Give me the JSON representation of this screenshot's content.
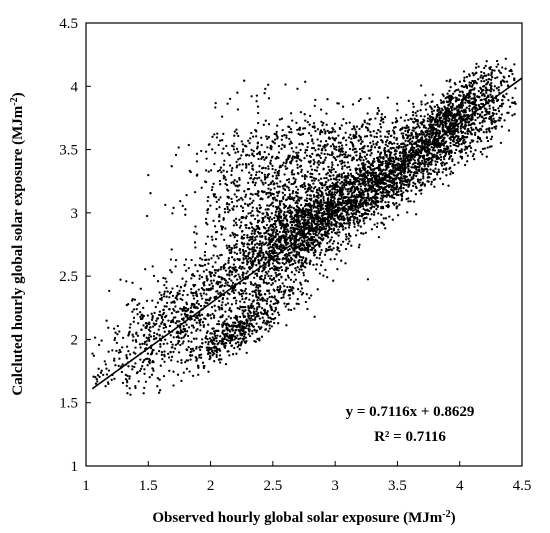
{
  "chart_data": {
    "type": "scatter",
    "title": "",
    "xlabel": "Observed hourly  global solar exposure (MJm",
    "xlabel_sup": "-2",
    "xlabel_end": ")",
    "ylabel": "Calcluted hourly  global solar exposure (MJm",
    "ylabel_sup": "-2",
    "ylabel_end": ")",
    "xlim": [
      1,
      4.5
    ],
    "ylim": [
      1,
      4.5
    ],
    "x_ticks": [
      "1",
      "1.5",
      "2",
      "2.5",
      "3",
      "3.5",
      "4",
      "4.5"
    ],
    "y_ticks": [
      "1",
      "1.5",
      "2",
      "2.5",
      "3",
      "3.5",
      "4",
      "4.5"
    ],
    "grid": false,
    "point_color": "#000000",
    "trendline": {
      "slope": 0.7116,
      "intercept": 0.8629,
      "x_range": [
        1.05,
        4.5
      ]
    },
    "equation_text": "y = 0.7116x + 0.8629",
    "r2_text": "R² = 0.7116",
    "series": [
      {
        "clusters": [
          {
            "cx": 3.3,
            "cy": 3.2,
            "sx": 0.55,
            "sy": 0.35,
            "rho": 0.92,
            "n": 2600
          },
          {
            "cx": 2.7,
            "cy": 2.85,
            "sx": 0.22,
            "sy": 0.28,
            "rho": 0.5,
            "n": 900
          },
          {
            "cx": 2.25,
            "cy": 2.1,
            "sx": 0.2,
            "sy": 0.15,
            "rho": 0.85,
            "n": 450
          },
          {
            "cx": 1.75,
            "cy": 2.15,
            "sx": 0.38,
            "sy": 0.3,
            "rho": 0.75,
            "n": 800
          },
          {
            "cx": 2.35,
            "cy": 3.1,
            "sx": 0.28,
            "sy": 0.35,
            "rho": 0.2,
            "n": 650
          },
          {
            "cx": 3.1,
            "cy": 3.55,
            "sx": 0.4,
            "sy": 0.15,
            "rho": 0.3,
            "n": 500
          },
          {
            "cx": 3.95,
            "cy": 3.8,
            "sx": 0.22,
            "sy": 0.18,
            "rho": 0.8,
            "n": 700
          }
        ],
        "sample_points": [
          [
            1.08,
            1.65
          ],
          [
            1.5,
            2.0
          ],
          [
            2.0,
            2.4
          ],
          [
            2.5,
            2.6
          ],
          [
            3.0,
            3.0
          ],
          [
            3.5,
            3.3
          ],
          [
            4.0,
            3.8
          ],
          [
            4.3,
            4.2
          ]
        ]
      }
    ]
  }
}
